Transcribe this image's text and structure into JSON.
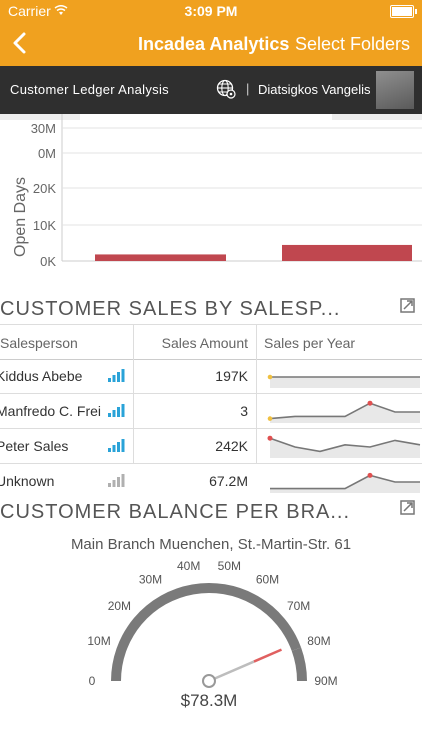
{
  "status_bar": {
    "carrier": "Carrier",
    "time": "3:09 PM"
  },
  "nav": {
    "title": "Incadea Analytics",
    "action": "Select Folders"
  },
  "subheader": {
    "report": "Customer Ledger Analysis",
    "separator": "|",
    "user": "Diatsigkos Vangelis"
  },
  "chart_open_days": {
    "ylabel": "Open Days",
    "upper_ticks": [
      "30M",
      "0M"
    ],
    "lower_ticks": [
      "20K",
      "10K",
      "0K"
    ]
  },
  "chart_data": [
    {
      "type": "bar",
      "ylabel": "Open Days",
      "categories": [
        "",
        ""
      ],
      "values": [
        1800,
        4400
      ],
      "ylim": [
        0,
        20000
      ],
      "color": "#c0474f"
    },
    {
      "type": "gauge",
      "title": "Main Branch Muenchen, St.-Martin-Str. 61",
      "value": 78.3,
      "value_label": "$78.3M",
      "min": 0,
      "max": 90,
      "ticks": [
        "0",
        "10M",
        "20M",
        "30M",
        "40M",
        "50M",
        "60M",
        "70M",
        "80M",
        "90M"
      ],
      "red_zone_start": 80
    }
  ],
  "sales_section": {
    "title": "CUSTOMER SALES BY SALESP...",
    "headers": {
      "salesperson": "Salesperson",
      "amount": "Sales Amount",
      "trend": "Sales per Year"
    },
    "rows": [
      {
        "name": "Kiddus Abebe",
        "amount": "197K",
        "bars_color": "#2aa3d8",
        "spark": [
          0.5,
          0.5,
          0.5,
          0.5,
          0.5,
          0.5
        ]
      },
      {
        "name": "Manfredo C. Frei",
        "amount": "3",
        "bars_color": "#2aa3d8",
        "spark": [
          0.2,
          0.3,
          0.3,
          0.3,
          0.9,
          0.5,
          0.5
        ]
      },
      {
        "name": "Peter Sales",
        "amount": "242K",
        "bars_color": "#2aa3d8",
        "spark": [
          0.9,
          0.5,
          0.3,
          0.6,
          0.5,
          0.8,
          0.6
        ]
      },
      {
        "name": "Unknown",
        "amount": "67.2M",
        "bars_color": "#b0b0b0",
        "spark": [
          0.2,
          0.2,
          0.2,
          0.2,
          0.8,
          0.5,
          0.5
        ]
      }
    ]
  },
  "balance_section": {
    "title": "CUSTOMER BALANCE PER BRA..."
  }
}
